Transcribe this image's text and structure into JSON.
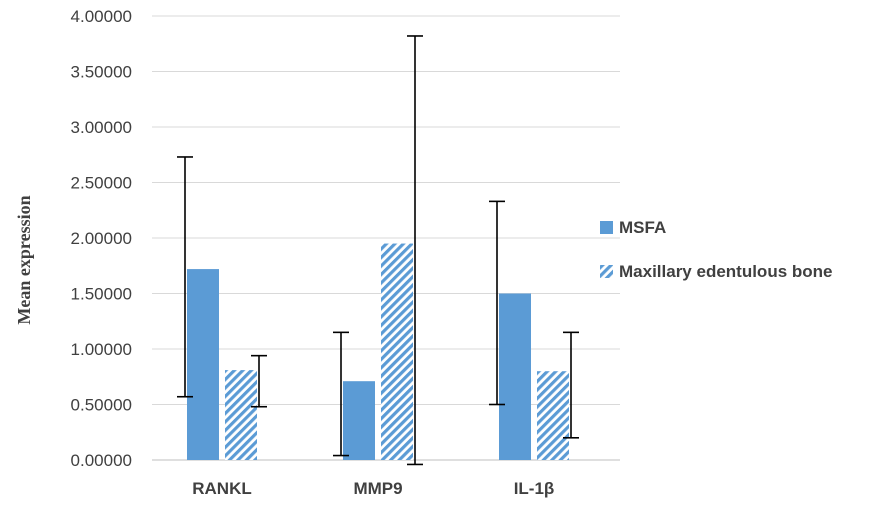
{
  "chart_data": {
    "type": "bar",
    "categories": [
      "RANKL",
      "MMP9",
      "IL-1β"
    ],
    "ylabel": "Mean expression",
    "ylim": [
      0,
      4
    ],
    "yticks": [
      "0.00000",
      "0.50000",
      "1.00000",
      "1.50000",
      "2.00000",
      "2.50000",
      "3.00000",
      "3.50000",
      "4.00000"
    ],
    "grid": true,
    "legend_position": "right",
    "series": [
      {
        "name": "MSFA",
        "pattern": "solid",
        "color": "#5b9bd5",
        "values": [
          1.72,
          0.71,
          1.5
        ],
        "error_low": [
          0.57,
          0.04,
          0.5
        ],
        "error_high": [
          2.73,
          1.15,
          2.33
        ]
      },
      {
        "name": "Maxillary edentulous bone",
        "pattern": "diagonal-stripes",
        "color": "#5b9bd5",
        "values": [
          0.81,
          1.95,
          0.8
        ],
        "error_low": [
          0.48,
          -0.04,
          0.2
        ],
        "error_high": [
          0.94,
          3.82,
          1.15
        ]
      }
    ]
  }
}
